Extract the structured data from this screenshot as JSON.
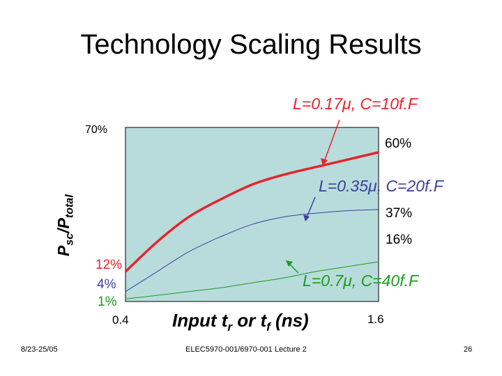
{
  "slide": {
    "title": "Technology Scaling Results",
    "footer_left": "8/23-25/05",
    "footer_center": "ELEC5970-001/6970-001 Lecture 2",
    "page_number": "26"
  },
  "chart_data": {
    "type": "line",
    "title": "",
    "ylabel": "Psc/Ptotal",
    "ylabel_main": "P",
    "ylabel_sub1": "sc",
    "ylabel_sep": "/P",
    "ylabel_sub2": "total",
    "xlabel": "Input tr or tf (ns)",
    "xlabel_main1": "Input t",
    "xlabel_sub1": "r",
    "xlabel_mid": " or t",
    "xlabel_sub2": "f",
    "xlabel_end": " (ns)",
    "xlim": [
      0.4,
      1.6
    ],
    "ylim": [
      0,
      70
    ],
    "x_tick_labels": [
      "0.4",
      "1.6"
    ],
    "y_tick_label_top": "70%",
    "background_color": "#b8dcdc",
    "grid": false,
    "series": [
      {
        "name": "L=0.17μ, C=10f.F",
        "color": "#e8232a",
        "start_label": "12%",
        "end_label": "60%",
        "x": [
          0.4,
          0.55,
          0.7,
          0.85,
          1.0,
          1.15,
          1.3,
          1.45,
          1.6
        ],
        "y": [
          12,
          24,
          34,
          41,
          47,
          51,
          54,
          57,
          60
        ]
      },
      {
        "name": "L=0.35μ, C=20f.F",
        "color": "#3a3f9c",
        "start_label": "4%",
        "end_label": "37%",
        "x": [
          0.4,
          0.55,
          0.7,
          0.85,
          1.0,
          1.15,
          1.3,
          1.45,
          1.6
        ],
        "y": [
          4,
          12,
          20,
          26,
          31,
          34,
          35.5,
          36.5,
          37
        ]
      },
      {
        "name": "L=0.7μ, C=40f.F",
        "color": "#1e9a1e",
        "start_label": "1%",
        "end_label": "16%",
        "x": [
          0.4,
          0.55,
          0.7,
          0.85,
          1.0,
          1.15,
          1.3,
          1.45,
          1.6
        ],
        "y": [
          1,
          2.5,
          4,
          5.5,
          7.5,
          9.5,
          12,
          14,
          16
        ]
      }
    ]
  }
}
